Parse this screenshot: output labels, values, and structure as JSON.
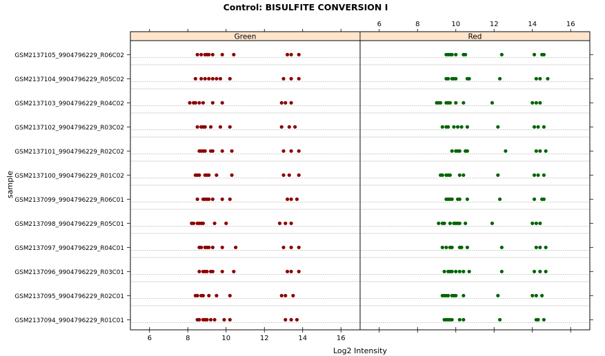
{
  "chart_data": {
    "type": "scatter",
    "title": "Control: BISULFITE CONVERSION I",
    "xlabel": "Log2 Intensity",
    "ylabel": "sample",
    "xlim": [
      5,
      17
    ],
    "x_ticks": [
      6,
      8,
      10,
      12,
      14,
      16
    ],
    "grid": true,
    "panels": [
      {
        "name": "Green",
        "color": "#8b0000",
        "series_key": "green"
      },
      {
        "name": "Red",
        "color": "#006400",
        "series_key": "red"
      }
    ],
    "samples": [
      {
        "name": "GSM2137105_9904796229_R06C02",
        "green": [
          8.5,
          8.7,
          8.9,
          9.0,
          9.1,
          9.3,
          9.8,
          10.4,
          13.2,
          13.4,
          13.8
        ],
        "red": [
          9.5,
          9.6,
          9.7,
          9.8,
          10.0,
          10.4,
          10.5,
          12.4,
          14.1,
          14.5,
          14.6
        ]
      },
      {
        "name": "GSM2137104_9904796229_R05C02",
        "green": [
          8.4,
          8.7,
          8.9,
          9.1,
          9.3,
          9.5,
          9.7,
          10.2,
          13.0,
          13.4,
          13.8
        ],
        "red": [
          9.5,
          9.6,
          9.8,
          9.9,
          10.0,
          10.6,
          10.7,
          12.3,
          14.2,
          14.4,
          14.8
        ]
      },
      {
        "name": "GSM2137103_9904796229_R04C02",
        "green": [
          8.1,
          8.3,
          8.4,
          8.6,
          8.8,
          9.3,
          9.8,
          12.9,
          13.1,
          13.4
        ],
        "red": [
          9.0,
          9.1,
          9.2,
          9.5,
          9.6,
          9.7,
          10.0,
          10.4,
          11.9,
          14.0,
          14.2,
          14.4
        ]
      },
      {
        "name": "GSM2137102_9904796229_R03C02",
        "green": [
          8.5,
          8.7,
          8.8,
          8.9,
          9.2,
          9.7,
          10.2,
          12.9,
          13.3,
          13.6
        ],
        "red": [
          9.3,
          9.5,
          9.6,
          9.9,
          10.1,
          10.3,
          10.6,
          12.2,
          14.1,
          14.3,
          14.6
        ]
      },
      {
        "name": "GSM2137101_9904796229_R02C02",
        "green": [
          8.6,
          8.7,
          8.8,
          8.9,
          9.2,
          9.3,
          9.8,
          10.3,
          13.0,
          13.4,
          13.8
        ],
        "red": [
          9.8,
          10.0,
          10.1,
          10.2,
          10.5,
          10.6,
          12.6,
          14.2,
          14.4,
          14.7
        ]
      },
      {
        "name": "GSM2137100_9904796229_R01C02",
        "green": [
          8.4,
          8.5,
          8.6,
          8.9,
          9.0,
          9.1,
          9.5,
          10.3,
          13.0,
          13.3,
          13.8
        ],
        "red": [
          9.2,
          9.3,
          9.5,
          9.6,
          9.7,
          10.2,
          10.4,
          12.2,
          14.1,
          14.3,
          14.6
        ]
      },
      {
        "name": "GSM2137099_9904796229_R06C01",
        "green": [
          8.5,
          8.8,
          8.9,
          9.0,
          9.1,
          9.3,
          9.8,
          10.2,
          13.2,
          13.4,
          13.7
        ],
        "red": [
          9.5,
          9.6,
          9.7,
          9.8,
          10.1,
          10.2,
          10.6,
          12.3,
          14.1,
          14.5,
          14.6
        ]
      },
      {
        "name": "GSM2137098_9904796229_R05C01",
        "green": [
          8.2,
          8.3,
          8.5,
          8.6,
          8.7,
          8.8,
          9.4,
          10.0,
          12.8,
          13.1,
          13.4
        ],
        "red": [
          9.1,
          9.3,
          9.4,
          9.7,
          9.9,
          10.0,
          10.1,
          10.2,
          10.5,
          11.9,
          14.0,
          14.2,
          14.4
        ]
      },
      {
        "name": "GSM2137097_9904796229_R04C01",
        "green": [
          8.6,
          8.7,
          8.9,
          9.0,
          9.1,
          9.3,
          9.8,
          10.5,
          13.0,
          13.4,
          13.8
        ],
        "red": [
          9.3,
          9.5,
          9.7,
          9.8,
          10.2,
          10.3,
          10.6,
          12.4,
          14.2,
          14.4,
          14.7
        ]
      },
      {
        "name": "GSM2137096_9904796229_R03C01",
        "green": [
          8.6,
          8.8,
          8.9,
          9.0,
          9.2,
          9.3,
          9.8,
          10.4,
          13.2,
          13.4,
          13.8
        ],
        "red": [
          9.4,
          9.6,
          9.7,
          9.8,
          10.0,
          10.2,
          10.4,
          10.7,
          12.4,
          14.1,
          14.4,
          14.7
        ]
      },
      {
        "name": "GSM2137095_9904796229_R02C01",
        "green": [
          8.4,
          8.5,
          8.7,
          8.8,
          9.1,
          9.5,
          10.2,
          12.9,
          13.1,
          13.5
        ],
        "red": [
          9.3,
          9.4,
          9.5,
          9.6,
          9.8,
          9.9,
          10.0,
          10.4,
          12.2,
          14.0,
          14.2,
          14.5
        ]
      },
      {
        "name": "GSM2137094_9904796229_R01C01",
        "green": [
          8.5,
          8.6,
          8.8,
          8.9,
          9.0,
          9.2,
          9.4,
          9.9,
          10.2,
          13.1,
          13.4,
          13.7
        ],
        "red": [
          9.4,
          9.5,
          9.6,
          9.7,
          9.8,
          10.2,
          10.4,
          12.3,
          14.2,
          14.3,
          14.6
        ]
      }
    ]
  }
}
